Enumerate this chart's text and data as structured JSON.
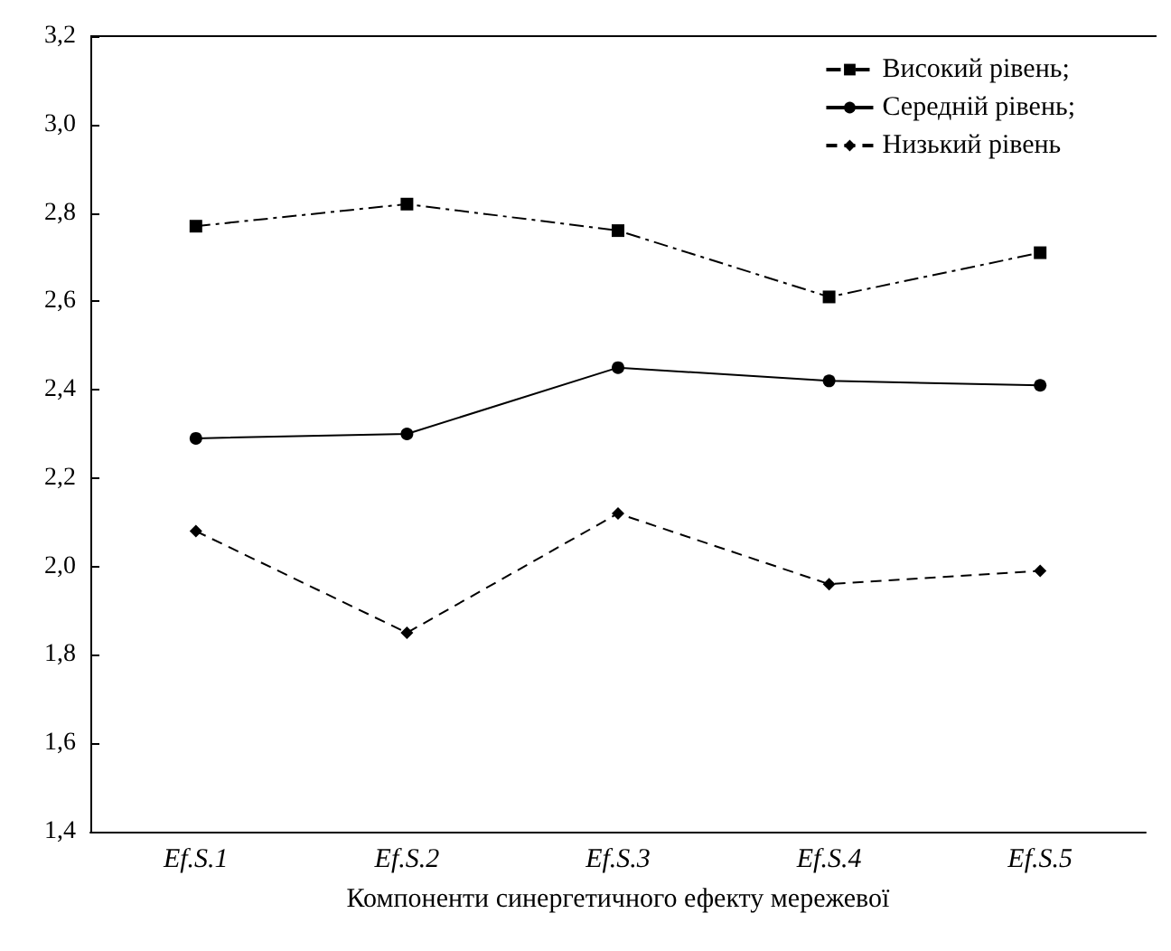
{
  "chart_data": {
    "type": "line",
    "xlabel": "Компоненти синергетичного ефекту мережевої",
    "categories": [
      "Ef.S.1",
      "Ef.S.2",
      "Ef.S.3",
      "Ef.S.4",
      "Ef.S.5"
    ],
    "ylim": [
      1.4,
      3.2
    ],
    "yticks": [
      {
        "value": 1.4,
        "label": "1,4"
      },
      {
        "value": 1.6,
        "label": "1,6"
      },
      {
        "value": 1.8,
        "label": "1,8"
      },
      {
        "value": 2.0,
        "label": "2,0"
      },
      {
        "value": 2.2,
        "label": "2,2"
      },
      {
        "value": 2.4,
        "label": "2,4"
      },
      {
        "value": 2.6,
        "label": "2,6"
      },
      {
        "value": 2.8,
        "label": "2,8"
      },
      {
        "value": 3.0,
        "label": "3,0"
      },
      {
        "value": 3.2,
        "label": "3,2"
      }
    ],
    "grid": false,
    "legend": "top right",
    "series": [
      {
        "name": "Високий рівень;",
        "color": "#000000",
        "marker": "square",
        "line_style": "dashdot",
        "values": [
          2.77,
          2.82,
          2.76,
          2.61,
          2.71
        ]
      },
      {
        "name": "Середній рівень;",
        "color": "#000000",
        "marker": "circle",
        "line_style": "solid",
        "values": [
          2.29,
          2.3,
          2.45,
          2.42,
          2.41
        ]
      },
      {
        "name": "Низький рівень",
        "color": "#000000",
        "marker": "diamond",
        "line_style": "dashed",
        "values": [
          2.08,
          1.85,
          2.12,
          1.96,
          1.99
        ]
      }
    ]
  }
}
